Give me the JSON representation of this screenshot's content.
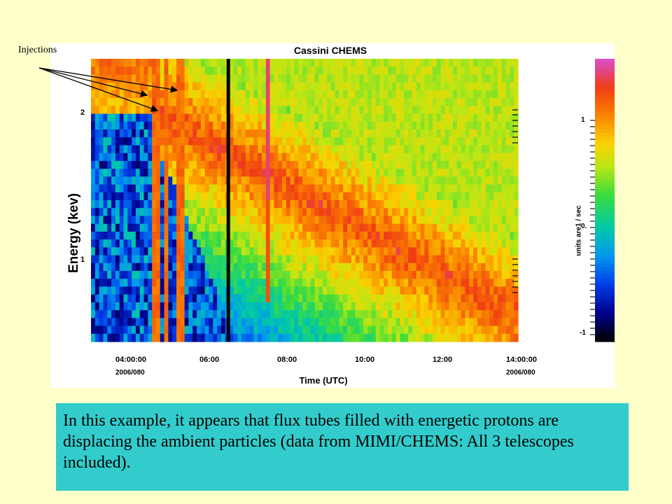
{
  "annotation": {
    "label": "Injections"
  },
  "caption": "In this example, it appears that flux tubes filled with energetic protons are displacing the ambient particles (data from MIMI/CHEMS: All 3 telescopes included).",
  "chart_data": {
    "type": "heatmap",
    "title": "Cassini CHEMS",
    "xlabel": "Time (UTC)",
    "ylabel": "Energy (kev)",
    "x_ticks": [
      "04:00:00",
      "06:00",
      "08:00",
      "10:00",
      "12:00",
      "14:00:00"
    ],
    "x_date_labels": [
      "2006/080",
      "2006/080"
    ],
    "y_ticks": [
      "2",
      "1"
    ],
    "colorbar": {
      "label": "units are1 / sec",
      "ticks": [
        "1",
        "0.",
        "-1"
      ],
      "range": [
        -1.1,
        1.6
      ]
    },
    "injections_utc": [
      "04:45",
      "05:00",
      "05:25"
    ],
    "data_gap_utc": "06:40",
    "colors": {
      "background": "#ffffcc",
      "caption_box": "#33cccc"
    }
  }
}
